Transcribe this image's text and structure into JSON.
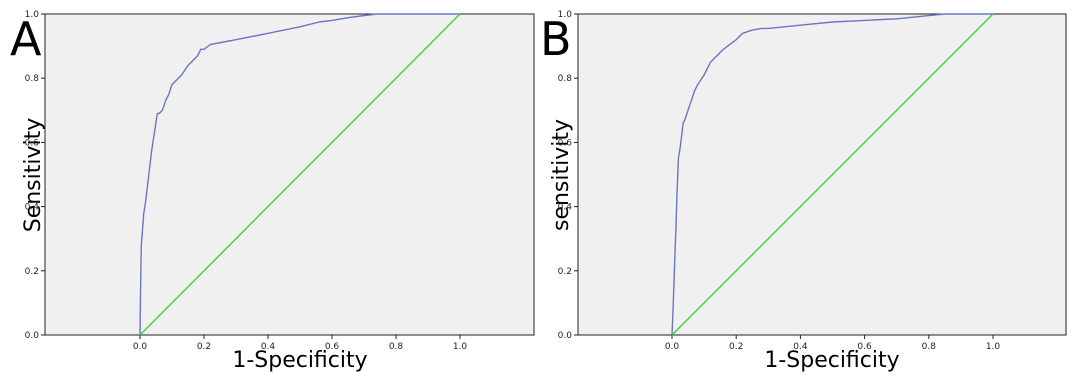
{
  "chart_data": [
    {
      "type": "line",
      "panel_label": "A",
      "xlabel": "1-Specificity",
      "ylabel": "Sensitivity",
      "xlim": [
        0,
        1
      ],
      "ylim": [
        0,
        1
      ],
      "x_ticks": [
        "0.0",
        "0.2",
        "0.4",
        "0.6",
        "0.8",
        "1.0"
      ],
      "y_ticks": [
        "0.0",
        "0.2",
        "0.4",
        "0.6",
        "0.8",
        "1.0"
      ],
      "grid": false,
      "series": [
        {
          "color": "#6a76c4",
          "x": [
            0.0,
            0.002,
            0.004,
            0.008,
            0.012,
            0.018,
            0.024,
            0.03,
            0.036,
            0.042,
            0.048,
            0.054,
            0.06,
            0.07,
            0.08,
            0.09,
            0.1,
            0.11,
            0.13,
            0.15,
            0.16,
            0.18,
            0.19,
            0.2,
            0.22,
            0.3,
            0.4,
            0.5,
            0.56,
            0.6,
            0.66,
            0.7,
            0.74,
            0.8,
            0.9,
            1.0
          ],
          "y": [
            0.0,
            0.15,
            0.28,
            0.33,
            0.38,
            0.42,
            0.47,
            0.52,
            0.57,
            0.61,
            0.65,
            0.69,
            0.69,
            0.7,
            0.73,
            0.75,
            0.78,
            0.79,
            0.81,
            0.84,
            0.85,
            0.87,
            0.89,
            0.89,
            0.905,
            0.92,
            0.94,
            0.96,
            0.975,
            0.98,
            0.99,
            0.995,
            1.0,
            1.0,
            1.0,
            1.0
          ]
        },
        {
          "color": "#3fcf3f",
          "x": [
            0,
            1
          ],
          "y": [
            0,
            1
          ]
        }
      ]
    },
    {
      "type": "line",
      "panel_label": "B",
      "xlabel": "1-Specificity",
      "ylabel": "sensitivity",
      "xlim": [
        0,
        1
      ],
      "ylim": [
        0,
        1
      ],
      "x_ticks": [
        "0.0",
        "0.2",
        "0.4",
        "0.6",
        "0.8",
        "1.0"
      ],
      "y_ticks": [
        "0.0",
        "0.2",
        "0.4",
        "0.6",
        "0.8",
        "1.0"
      ],
      "grid": false,
      "series": [
        {
          "color": "#6a76c4",
          "x": [
            0.0,
            0.004,
            0.008,
            0.012,
            0.016,
            0.02,
            0.025,
            0.03,
            0.035,
            0.04,
            0.05,
            0.06,
            0.07,
            0.08,
            0.1,
            0.12,
            0.13,
            0.16,
            0.2,
            0.22,
            0.25,
            0.28,
            0.3,
            0.35,
            0.4,
            0.5,
            0.6,
            0.7,
            0.8,
            0.85,
            0.9,
            1.0
          ],
          "y": [
            0.0,
            0.1,
            0.22,
            0.33,
            0.45,
            0.55,
            0.58,
            0.62,
            0.66,
            0.67,
            0.7,
            0.73,
            0.76,
            0.78,
            0.81,
            0.85,
            0.86,
            0.89,
            0.92,
            0.94,
            0.95,
            0.955,
            0.955,
            0.96,
            0.965,
            0.975,
            0.98,
            0.985,
            0.995,
            1.0,
            1.0,
            1.0
          ]
        },
        {
          "color": "#3fcf3f",
          "x": [
            0,
            1
          ],
          "y": [
            0,
            1
          ]
        }
      ]
    }
  ]
}
